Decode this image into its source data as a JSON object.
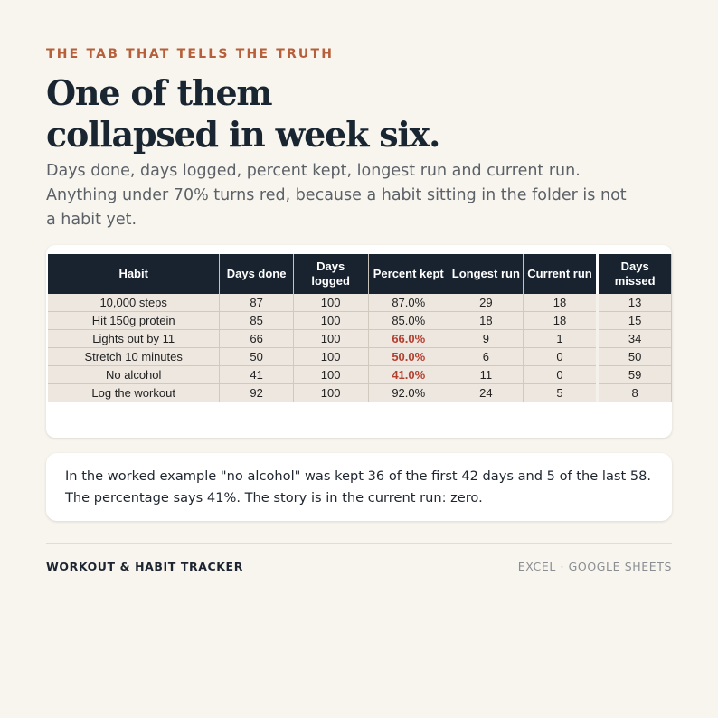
{
  "eyebrow": "THE TAB THAT TELLS THE TRUTH",
  "headline": {
    "line1": "One of them",
    "line2": "collapsed in week six."
  },
  "lead": "Days done, days logged, percent kept, longest run and current run. Anything under 70% turns red, because a habit sitting in the folder is not a habit yet.",
  "table": {
    "headers": [
      "Habit",
      "Days done",
      "Days logged",
      "Percent kept",
      "Longest run",
      "Current run",
      "Days missed"
    ],
    "rows": [
      [
        "10,000 steps",
        "87",
        "100",
        "87.0%",
        "29",
        "18",
        "13"
      ],
      [
        "Hit 150g protein",
        "85",
        "100",
        "85.0%",
        "18",
        "18",
        "15"
      ],
      [
        "Lights out by 11",
        "66",
        "100",
        "66.0%",
        "9",
        "1",
        "34"
      ],
      [
        "Stretch 10 minutes",
        "50",
        "100",
        "50.0%",
        "6",
        "0",
        "50"
      ],
      [
        "No alcohol",
        "41",
        "100",
        "41.0%",
        "11",
        "0",
        "59"
      ],
      [
        "Log the workout",
        "92",
        "100",
        "92.0%",
        "24",
        "5",
        "8"
      ]
    ],
    "red_threshold_percent": 70,
    "colors": {
      "header_bg": "#18232f",
      "cell_bg": "#ede7e0",
      "red": "#b3402f"
    }
  },
  "note": "In the worked example \"no alcohol\" was kept 36 of the first 42 days and 5 of the last 58. The percentage says 41%. The story is in the current run: zero.",
  "footer": {
    "left": "WORKOUT & HABIT TRACKER",
    "right": "EXCEL · GOOGLE SHEETS"
  },
  "colors": {
    "background": "#f8f5ee",
    "accent": "#b65f3a",
    "headline": "#1a2532"
  }
}
